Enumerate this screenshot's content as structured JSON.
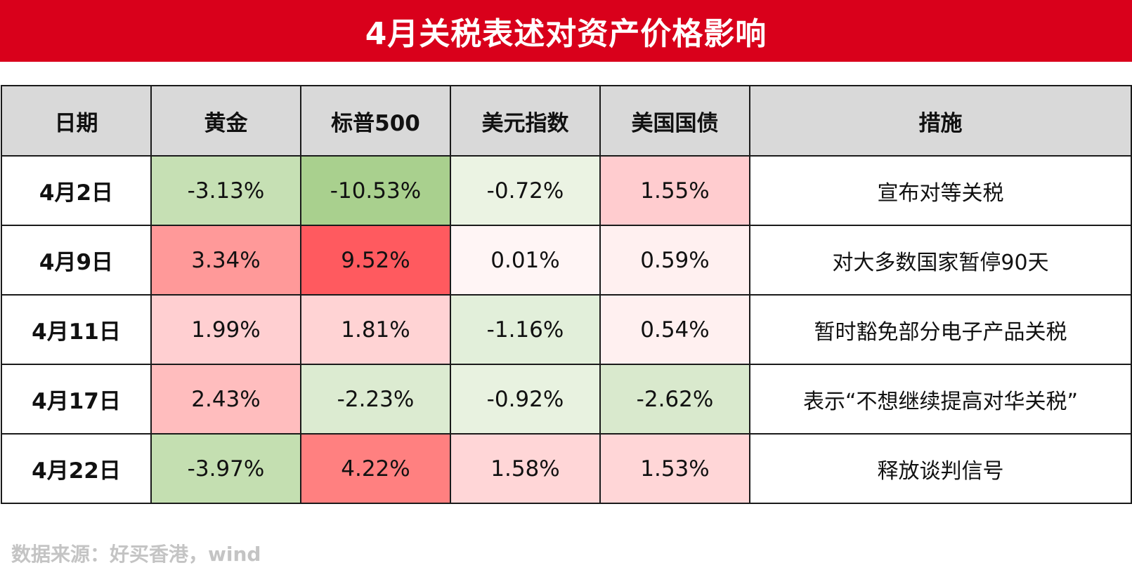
{
  "title": "4月关税表述对资产价格影响",
  "table": {
    "headers": [
      "日期",
      "黄金",
      "标普500",
      "美元指数",
      "美国国债",
      "措施"
    ],
    "rows": [
      {
        "date": "4月2日",
        "cells": [
          {
            "text": "-3.13%",
            "color": "#c6e0b4"
          },
          {
            "text": "-10.53%",
            "color": "#a9d08e"
          },
          {
            "text": "-0.72%",
            "color": "#ebf3e3"
          },
          {
            "text": "1.55%",
            "color": "#ffcccf"
          }
        ],
        "measure": "宣布对等关税"
      },
      {
        "date": "4月9日",
        "cells": [
          {
            "text": "3.34%",
            "color": "#ff9999"
          },
          {
            "text": "9.52%",
            "color": "#ff5a5f"
          },
          {
            "text": "0.01%",
            "color": "#fff5f5"
          },
          {
            "text": "0.59%",
            "color": "#fff0f0"
          }
        ],
        "measure": "对大多数国家暂停90天"
      },
      {
        "date": "4月11日",
        "cells": [
          {
            "text": "1.99%",
            "color": "#ffcfd1"
          },
          {
            "text": "1.81%",
            "color": "#ffd3d4"
          },
          {
            "text": "-1.16%",
            "color": "#e2efda"
          },
          {
            "text": "0.54%",
            "color": "#fff0f0"
          }
        ],
        "measure": "暂时豁免部分电子产品关税"
      },
      {
        "date": "4月17日",
        "cells": [
          {
            "text": "2.43%",
            "color": "#ffbdbe"
          },
          {
            "text": "-2.23%",
            "color": "#dcebd1"
          },
          {
            "text": "-0.92%",
            "color": "#e8f2e0"
          },
          {
            "text": "-2.62%",
            "color": "#d9e9cd"
          }
        ],
        "measure": "表示“不想继续提高对华关税”"
      },
      {
        "date": "4月22日",
        "cells": [
          {
            "text": "-3.97%",
            "color": "#c4dfb1"
          },
          {
            "text": "4.22%",
            "color": "#ff8080"
          },
          {
            "text": "1.58%",
            "color": "#ffd6d7"
          },
          {
            "text": "1.53%",
            "color": "#ffd6d7"
          }
        ],
        "measure": "释放谈判信号"
      }
    ]
  },
  "source": "数据来源：好买香港，wind",
  "colors": {
    "title_bar": "#d9001b",
    "header_bg": "#d9d9d9"
  }
}
